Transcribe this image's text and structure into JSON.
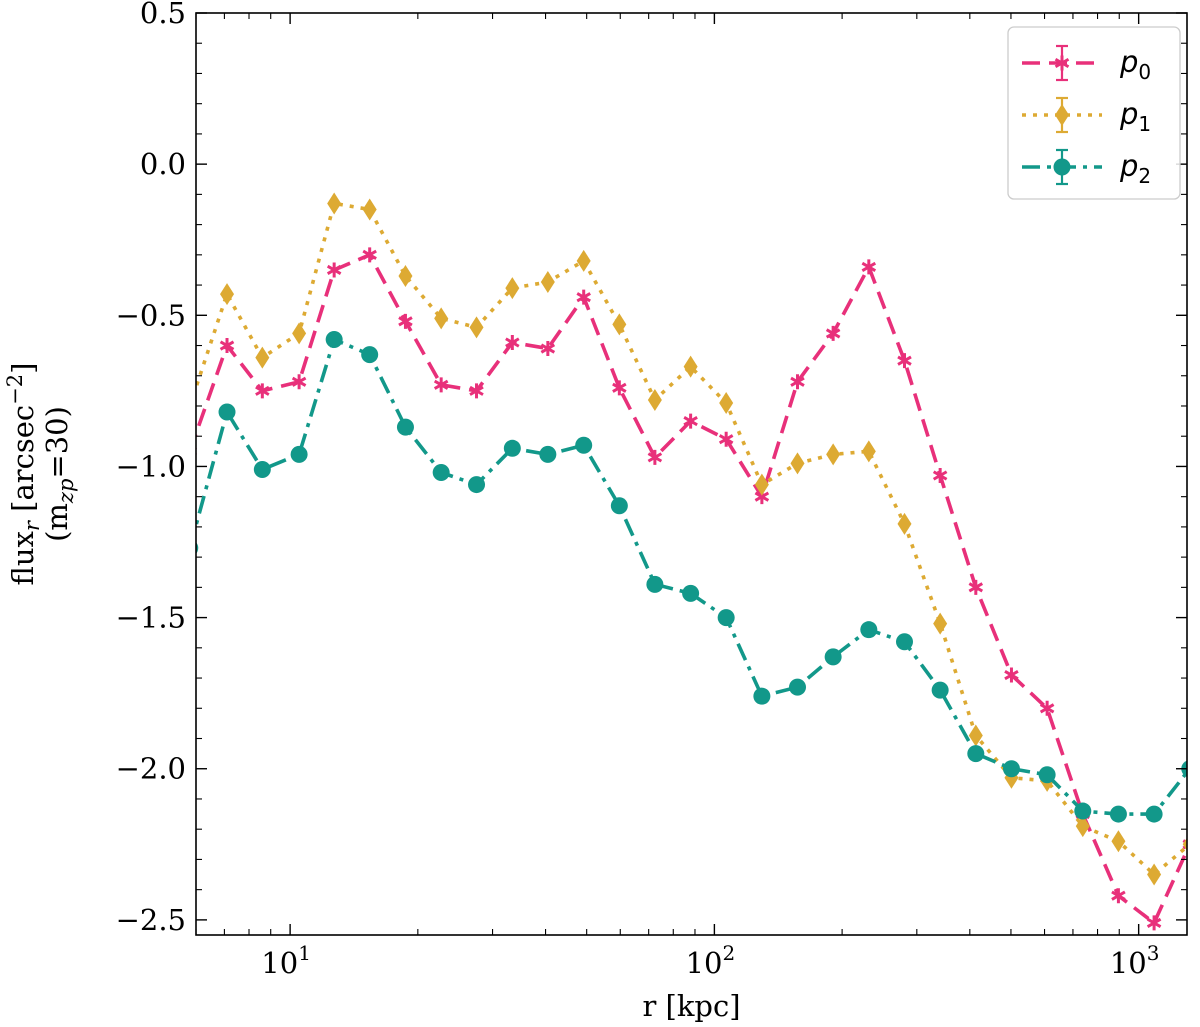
{
  "chart_data": {
    "type": "line",
    "xscale": "log",
    "xlim": [
      6.0,
      1300.0
    ],
    "ylim": [
      -2.55,
      0.5
    ],
    "xlabel": "r [kpc]",
    "ylabel_line1": "flux",
    "ylabel_sub": "r",
    "ylabel_unit_open": " [arcsec",
    "ylabel_unit_sup": "−2",
    "ylabel_unit_close": "]",
    "ylabel_line2_open": "(m",
    "ylabel_line2_sub": "zp",
    "ylabel_line2_close": "=30)",
    "yticks": [
      -2.5,
      -2.0,
      -1.5,
      -1.0,
      -0.5,
      0.0,
      0.5
    ],
    "ytick_labels": [
      "−2.5",
      "−2.0",
      "−1.5",
      "−1.0",
      "−0.5",
      "0.0",
      "0.5"
    ],
    "xticks": [
      {
        "value": 10,
        "base": "10",
        "exp": "1"
      },
      {
        "value": 100,
        "base": "10",
        "exp": "2"
      },
      {
        "value": 1000,
        "base": "10",
        "exp": "3"
      }
    ],
    "legend_position": "top-right",
    "series": [
      {
        "name": "p",
        "sub": "0",
        "color": "#E8307A",
        "dash": "18,9",
        "marker": "star",
        "x": [
          5.8,
          7.1,
          8.6,
          10.5,
          12.7,
          15.4,
          18.7,
          22.7,
          27.5,
          33.4,
          40.5,
          49.2,
          59.7,
          72.4,
          87.9,
          106.6,
          129.4,
          157.0,
          190.5,
          231.2,
          280.6,
          340.5,
          413.2,
          501.4,
          608.5,
          738.4,
          896.0,
          1087.4,
          1319.6
        ],
        "y": [
          -0.95,
          -0.6,
          -0.75,
          -0.72,
          -0.35,
          -0.3,
          -0.52,
          -0.73,
          -0.75,
          -0.59,
          -0.61,
          -0.44,
          -0.74,
          -0.97,
          -0.85,
          -0.91,
          -1.1,
          -0.72,
          -0.56,
          -0.34,
          -0.65,
          -1.03,
          -1.4,
          -1.69,
          -1.8,
          -2.15,
          -2.42,
          -2.51,
          -2.25
        ]
      },
      {
        "name": "p",
        "sub": "1",
        "color": "#DDAA33",
        "dash": "4,7",
        "marker": "diamond",
        "x": [
          5.8,
          7.1,
          8.6,
          10.5,
          12.7,
          15.4,
          18.7,
          22.7,
          27.5,
          33.4,
          40.5,
          49.2,
          59.7,
          72.4,
          87.9,
          106.6,
          129.4,
          157.0,
          190.5,
          231.2,
          280.6,
          340.5,
          413.2,
          501.4,
          608.5,
          738.4,
          896.0,
          1087.4,
          1319.6
        ],
        "y": [
          -0.8,
          -0.43,
          -0.64,
          -0.56,
          -0.13,
          -0.15,
          -0.37,
          -0.51,
          -0.54,
          -0.41,
          -0.39,
          -0.32,
          -0.53,
          -0.78,
          -0.67,
          -0.79,
          -1.06,
          -0.99,
          -0.96,
          -0.95,
          -1.19,
          -1.52,
          -1.89,
          -2.03,
          -2.04,
          -2.19,
          -2.24,
          -2.35,
          -2.25
        ]
      },
      {
        "name": "p",
        "sub": "2",
        "color": "#12988A",
        "dash": "18,7,4,7",
        "marker": "circle",
        "x": [
          5.8,
          7.1,
          8.6,
          10.5,
          12.7,
          15.4,
          18.7,
          22.7,
          27.5,
          33.4,
          40.5,
          49.2,
          59.7,
          72.4,
          87.9,
          106.6,
          129.4,
          157.0,
          190.5,
          231.2,
          280.6,
          340.5,
          413.2,
          501.4,
          608.5,
          738.4,
          896.0,
          1087.4,
          1319.6
        ],
        "y": [
          -1.27,
          -0.82,
          -1.01,
          -0.96,
          -0.58,
          -0.63,
          -0.87,
          -1.02,
          -1.06,
          -0.94,
          -0.96,
          -0.93,
          -1.13,
          -1.39,
          -1.42,
          -1.5,
          -1.76,
          -1.73,
          -1.63,
          -1.54,
          -1.58,
          -1.74,
          -1.95,
          -2.0,
          -2.02,
          -2.14,
          -2.15,
          -2.15,
          -2.0
        ]
      }
    ]
  }
}
